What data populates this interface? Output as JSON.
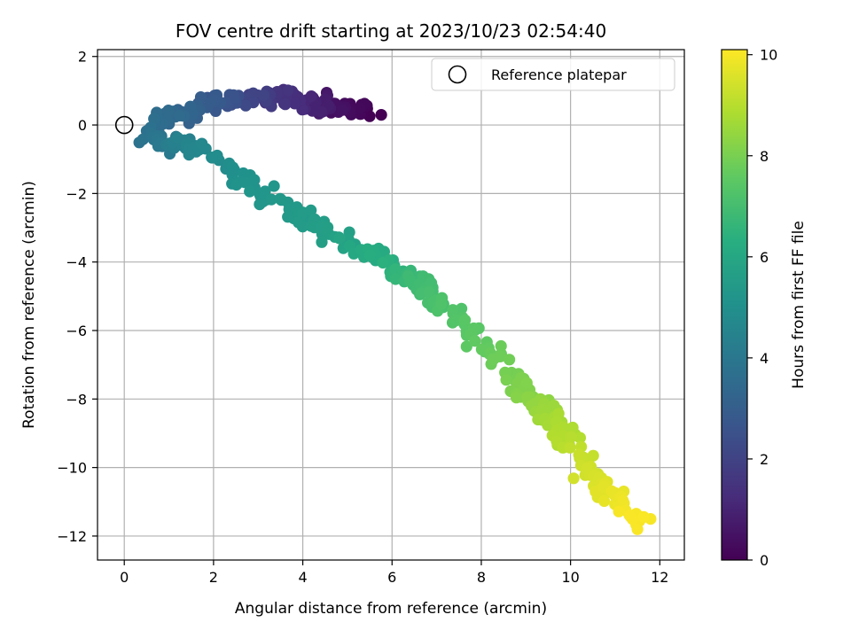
{
  "chart_data": {
    "type": "scatter",
    "title": "FOV centre drift starting at 2023/10/23 02:54:40",
    "xlabel": "Angular distance from reference (arcmin)",
    "ylabel": "Rotation from reference (arcmin)",
    "xlim": [
      -0.6,
      12.55
    ],
    "ylim": [
      -12.7,
      2.2
    ],
    "xticks": [
      0,
      2,
      4,
      6,
      8,
      10,
      12
    ],
    "yticks": [
      2,
      0,
      -2,
      -4,
      -6,
      -8,
      -10,
      -12
    ],
    "grid": true,
    "legend": {
      "position": "top-right",
      "entries": [
        "Reference platepar"
      ]
    },
    "reference_point": {
      "x": 0,
      "y": 0
    },
    "colorbar": {
      "label": "Hours from first FF file",
      "colormap": "viridis",
      "range": [
        0,
        10.1
      ],
      "ticks": [
        0,
        2,
        4,
        6,
        8,
        10
      ]
    },
    "anchors": [
      {
        "x": 5.55,
        "y": 0.35,
        "h": 0.0
      },
      {
        "x": 5.0,
        "y": 0.5,
        "h": 0.3
      },
      {
        "x": 4.45,
        "y": 0.6,
        "h": 0.6
      },
      {
        "x": 4.2,
        "y": 0.5,
        "h": 1.0
      },
      {
        "x": 3.6,
        "y": 0.8,
        "h": 1.4
      },
      {
        "x": 3.0,
        "y": 0.9,
        "h": 1.8
      },
      {
        "x": 2.5,
        "y": 0.7,
        "h": 2.3
      },
      {
        "x": 2.05,
        "y": 0.7,
        "h": 2.8
      },
      {
        "x": 1.65,
        "y": 0.4,
        "h": 3.1
      },
      {
        "x": 1.1,
        "y": 0.25,
        "h": 3.4
      },
      {
        "x": 0.45,
        "y": -0.1,
        "h": 3.7
      },
      {
        "x": 0.75,
        "y": -0.5,
        "h": 4.0
      },
      {
        "x": 1.3,
        "y": -0.55,
        "h": 4.4
      },
      {
        "x": 1.8,
        "y": -0.7,
        "h": 4.7
      },
      {
        "x": 2.4,
        "y": -1.4,
        "h": 5.0
      },
      {
        "x": 3.0,
        "y": -1.9,
        "h": 5.2
      },
      {
        "x": 3.6,
        "y": -2.3,
        "h": 5.35
      },
      {
        "x": 4.2,
        "y": -2.8,
        "h": 5.5
      },
      {
        "x": 5.0,
        "y": -3.4,
        "h": 5.8
      },
      {
        "x": 5.6,
        "y": -3.8,
        "h": 6.2
      },
      {
        "x": 6.1,
        "y": -4.3,
        "h": 6.5
      },
      {
        "x": 6.6,
        "y": -4.7,
        "h": 6.9
      },
      {
        "x": 7.2,
        "y": -5.3,
        "h": 7.2
      },
      {
        "x": 7.8,
        "y": -6.1,
        "h": 7.5
      },
      {
        "x": 8.4,
        "y": -6.9,
        "h": 7.8
      },
      {
        "x": 8.9,
        "y": -7.6,
        "h": 8.1
      },
      {
        "x": 9.3,
        "y": -8.1,
        "h": 8.4
      },
      {
        "x": 9.6,
        "y": -8.6,
        "h": 8.7
      },
      {
        "x": 10.0,
        "y": -9.3,
        "h": 9.0
      },
      {
        "x": 10.3,
        "y": -9.9,
        "h": 9.3
      },
      {
        "x": 10.6,
        "y": -10.6,
        "h": 9.6
      },
      {
        "x": 11.2,
        "y": -11.0,
        "h": 9.9
      },
      {
        "x": 11.6,
        "y": -11.6,
        "h": 10.05
      }
    ],
    "point_count": 540
  }
}
